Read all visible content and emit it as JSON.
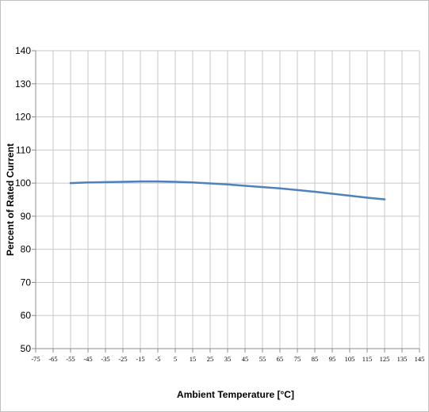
{
  "chart_data": {
    "type": "line",
    "title": "",
    "xlabel": "Ambient Temperature [°C]",
    "ylabel": "Percent of Rated Current",
    "xlim": [
      -75,
      145
    ],
    "ylim": [
      50,
      140
    ],
    "x_ticks": [
      -75,
      -65,
      -55,
      -45,
      -35,
      -25,
      -15,
      -5,
      5,
      15,
      25,
      35,
      45,
      55,
      65,
      75,
      85,
      95,
      105,
      115,
      125,
      135,
      145
    ],
    "y_ticks": [
      50,
      60,
      70,
      80,
      90,
      100,
      110,
      120,
      130,
      140
    ],
    "grid": true,
    "legend": "none",
    "series": [
      {
        "color": "#4f81bd",
        "x": [
          -55,
          -45,
          -35,
          -25,
          -15,
          -5,
          5,
          15,
          25,
          35,
          45,
          55,
          65,
          75,
          85,
          95,
          105,
          115,
          125
        ],
        "y": [
          100.0,
          100.2,
          100.3,
          100.4,
          100.5,
          100.5,
          100.4,
          100.2,
          99.9,
          99.6,
          99.2,
          98.8,
          98.4,
          97.9,
          97.4,
          96.8,
          96.2,
          95.6,
          95.1
        ]
      }
    ]
  }
}
